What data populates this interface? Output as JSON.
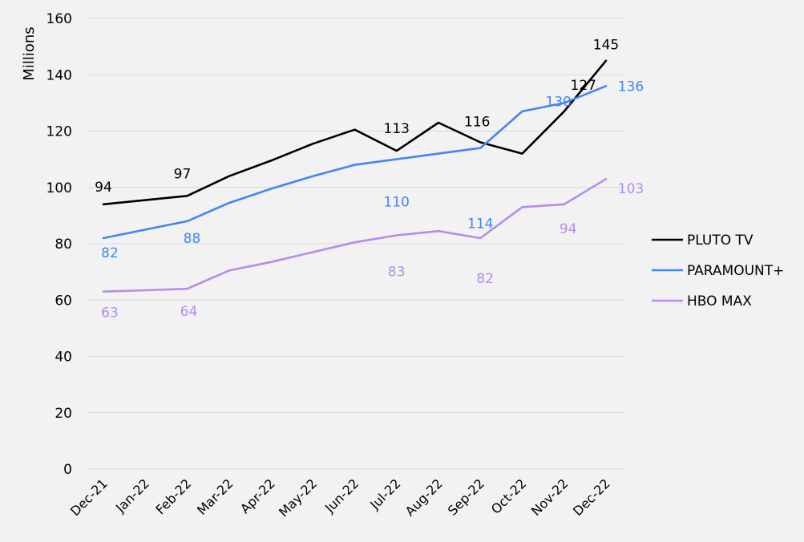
{
  "chart_data": {
    "type": "line",
    "ylabel": "Millions",
    "ylim": [
      0,
      160
    ],
    "yticks": [
      0,
      20,
      40,
      60,
      80,
      100,
      120,
      140,
      160
    ],
    "grid": true,
    "legend_position": "right",
    "categories": [
      "Dec-21",
      "Jan-22",
      "Feb-22",
      "Mar-22",
      "Apr-22",
      "May-22",
      "Jun-22",
      "Jul-22",
      "Aug-22",
      "Sep-22",
      "Oct-22",
      "Nov-22",
      "Dec-22"
    ],
    "series": [
      {
        "name": "PLUTO TV",
        "color": "#000000",
        "values": [
          94,
          95.5,
          97,
          104,
          109.5,
          115.5,
          120.5,
          113,
          123,
          116,
          112,
          127,
          145
        ],
        "data_labels": [
          {
            "index": 0,
            "text": "94"
          },
          {
            "index": 2,
            "text": "97"
          },
          {
            "index": 7,
            "text": "113"
          },
          {
            "index": 9,
            "text": "116"
          },
          {
            "index": 11,
            "text": "127"
          },
          {
            "index": 12,
            "text": "145"
          }
        ]
      },
      {
        "name": "PARAMOUNT+",
        "color": "#4285f4",
        "values": [
          82,
          85,
          88,
          94.5,
          99.5,
          104,
          108,
          110,
          112,
          114,
          127,
          130,
          136
        ],
        "data_labels": [
          {
            "index": 0,
            "text": "82"
          },
          {
            "index": 2,
            "text": "88"
          },
          {
            "index": 7,
            "text": "110"
          },
          {
            "index": 9,
            "text": "114"
          },
          {
            "index": 11,
            "text": "130"
          },
          {
            "index": 12,
            "text": "136"
          }
        ]
      },
      {
        "name": "HBO MAX",
        "color": "#b48cf0",
        "values": [
          63,
          63.5,
          64,
          70.5,
          73.5,
          77,
          80.5,
          83,
          84.5,
          82,
          93,
          94,
          103
        ],
        "data_labels": [
          {
            "index": 0,
            "text": "63"
          },
          {
            "index": 2,
            "text": "64"
          },
          {
            "index": 7,
            "text": "83"
          },
          {
            "index": 9,
            "text": "82"
          },
          {
            "index": 11,
            "text": "94"
          },
          {
            "index": 12,
            "text": "103"
          }
        ]
      }
    ]
  }
}
